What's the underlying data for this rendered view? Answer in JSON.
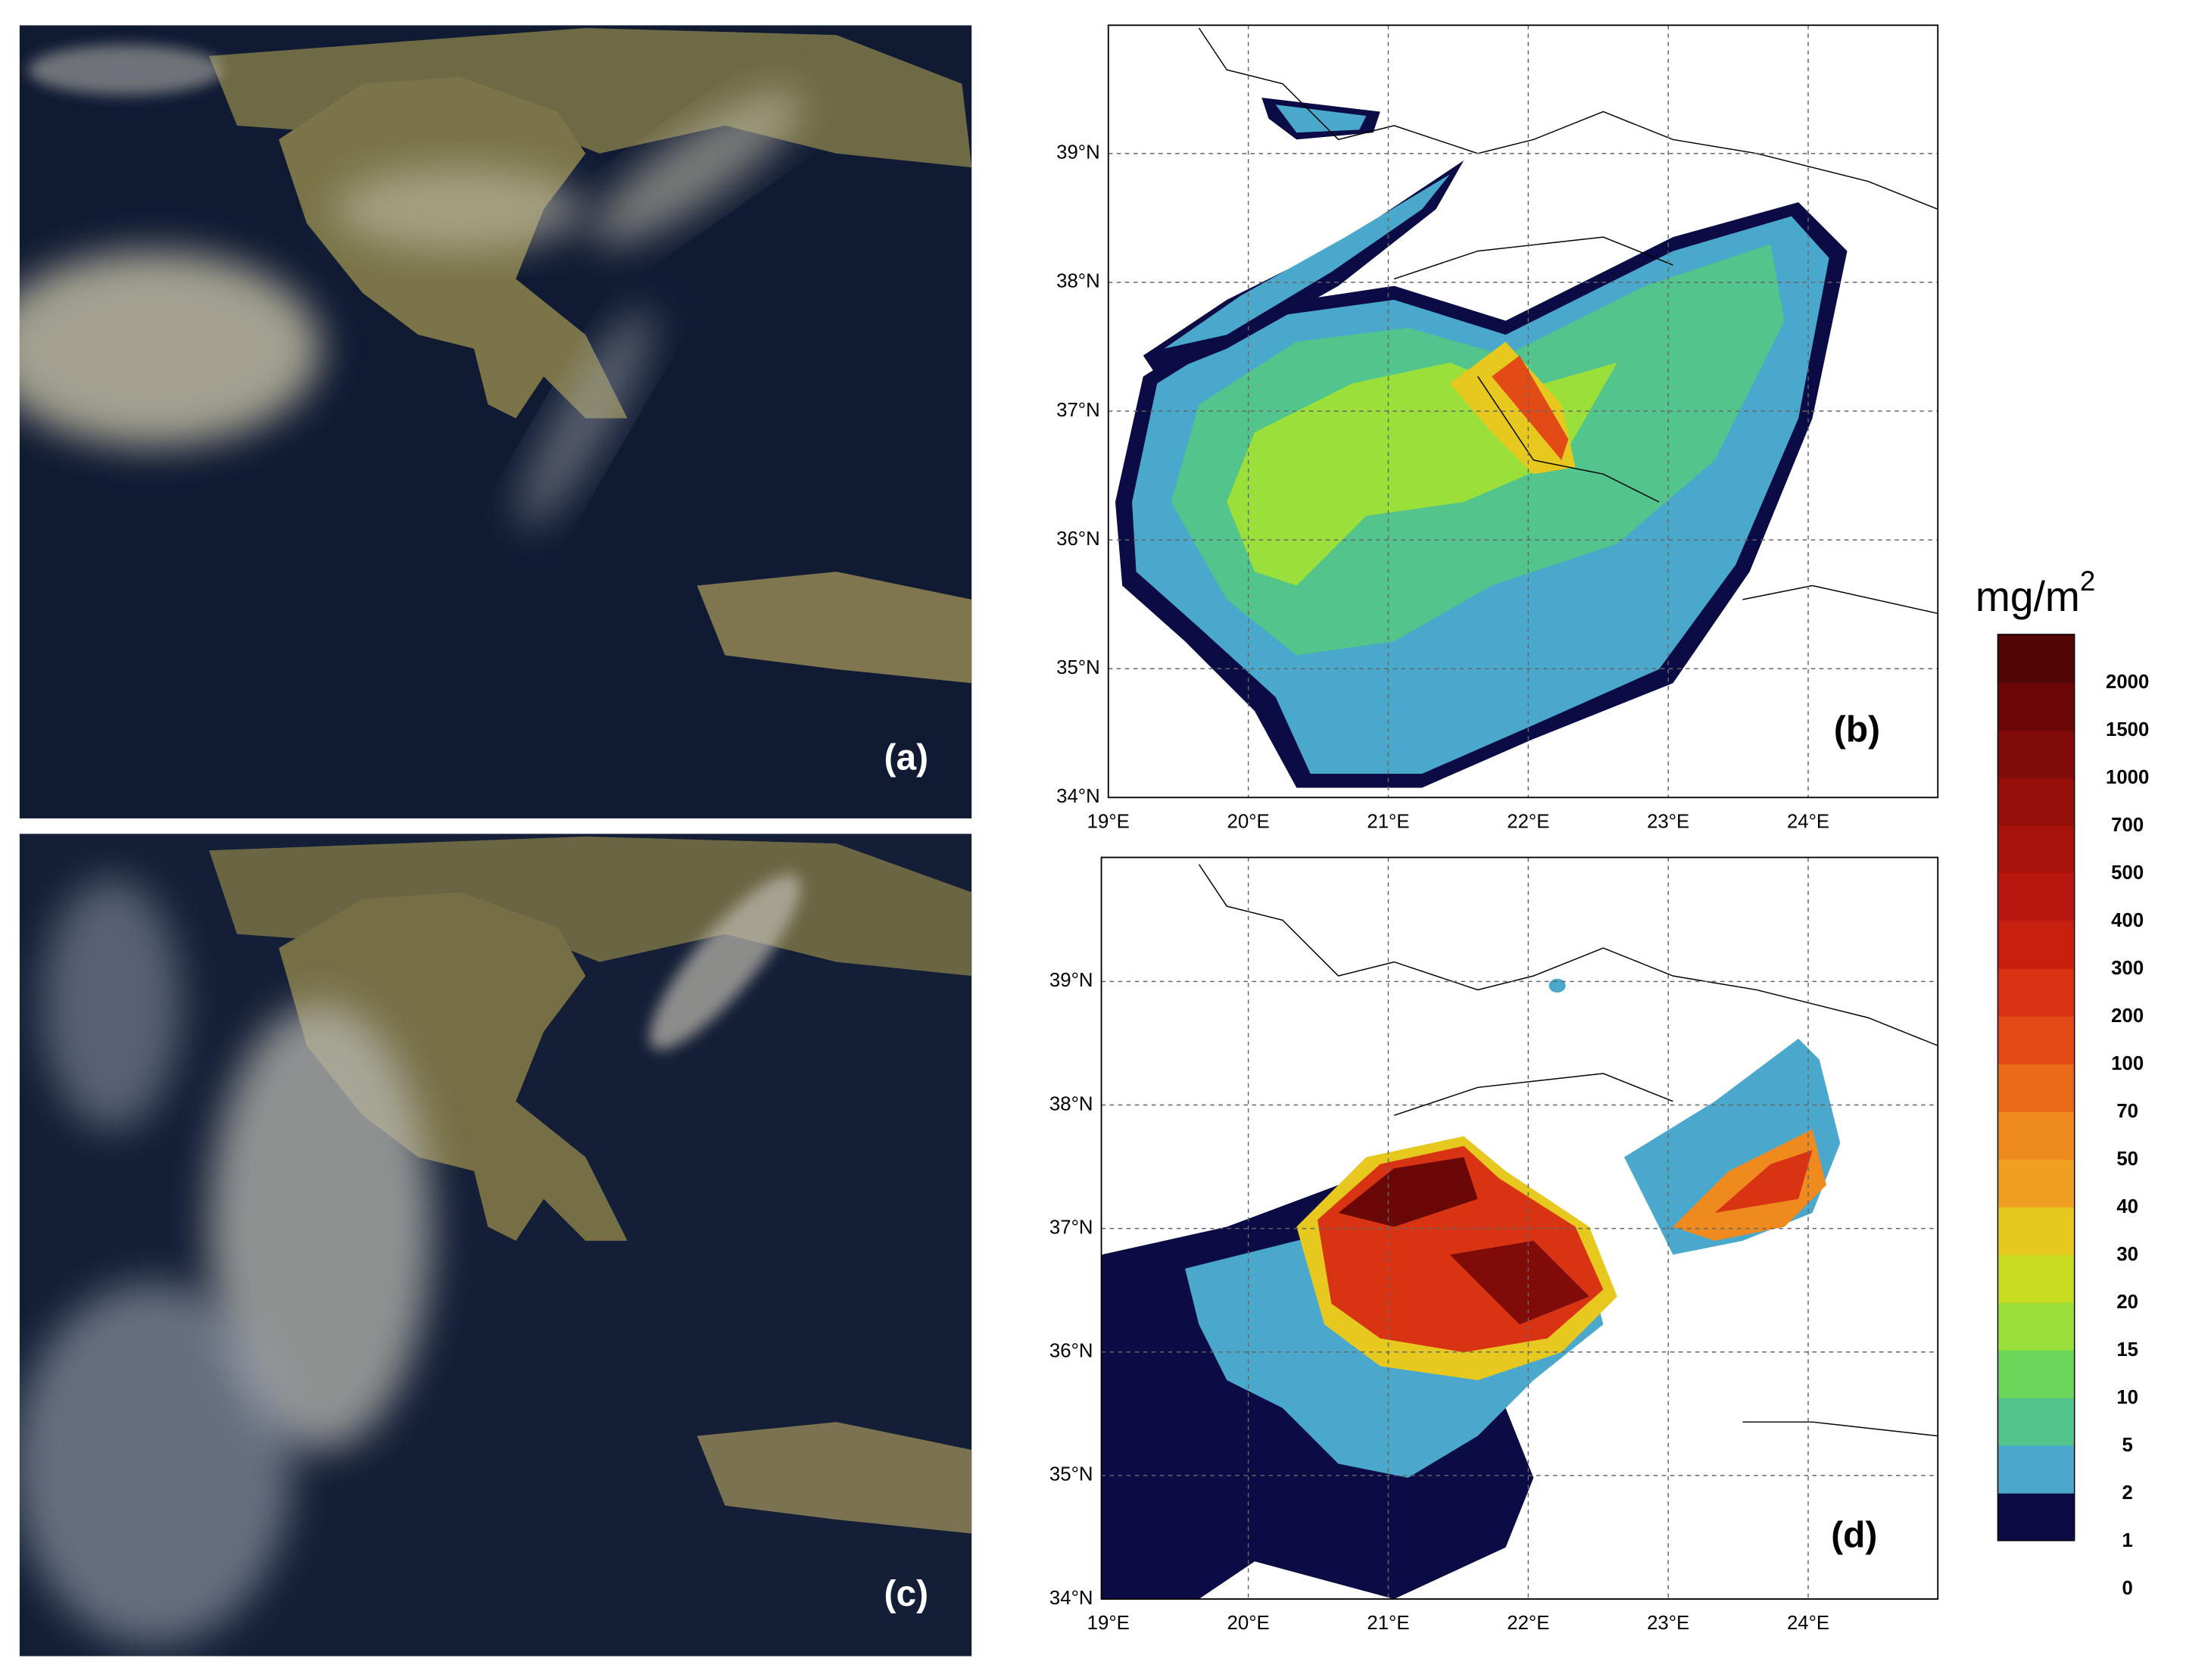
{
  "panels": [
    {
      "label": "(a)"
    },
    {
      "label": "(b)"
    },
    {
      "label": "(c)"
    },
    {
      "label": "(d)"
    }
  ],
  "maps": {
    "lat_ticks": [
      "34°N",
      "35°N",
      "36°N",
      "37°N",
      "38°N",
      "39°N"
    ],
    "lon_ticks": [
      "19°E",
      "20°E",
      "21°E",
      "22°E",
      "23°E",
      "24°E"
    ]
  },
  "colorbar": {
    "unit": "mg/m",
    "unit_superscript": "2",
    "levels": [
      0,
      1,
      2,
      5,
      10,
      15,
      20,
      30,
      40,
      50,
      70,
      100,
      200,
      300,
      400,
      500,
      700,
      1000,
      1500,
      2000
    ],
    "colors": [
      "#0b0b45",
      "#4aa8cc",
      "#52c48c",
      "#6ad65a",
      "#9be03a",
      "#c8dc22",
      "#e6c81e",
      "#f0a020",
      "#ee8a1e",
      "#ea6a1a",
      "#e24a16",
      "#d83414",
      "#c8200f",
      "#b8180e",
      "#a8140c",
      "#96100b",
      "#800c0a",
      "#6a0808",
      "#520606"
    ]
  }
}
